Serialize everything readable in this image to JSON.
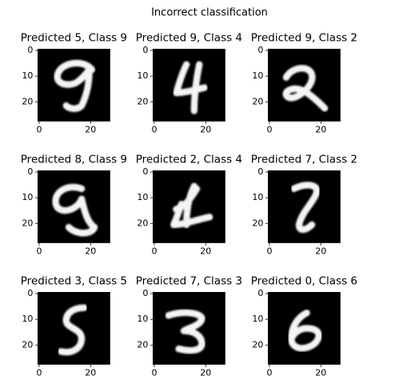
{
  "title": "Incorrect classification",
  "chart_data": [
    {
      "type": "image",
      "title": "Predicted 5, Class 9",
      "xlim": [
        -0.5,
        27.5
      ],
      "ylim": [
        27.5,
        -0.5
      ],
      "xticks": [
        0,
        20
      ],
      "yticks": [
        0,
        10,
        20
      ]
    },
    {
      "type": "image",
      "title": "Predicted 9, Class 4",
      "xlim": [
        -0.5,
        27.5
      ],
      "ylim": [
        27.5,
        -0.5
      ],
      "xticks": [
        0,
        20
      ],
      "yticks": [
        0,
        10,
        20
      ]
    },
    {
      "type": "image",
      "title": "Predicted 9, Class 2",
      "xlim": [
        -0.5,
        27.5
      ],
      "ylim": [
        27.5,
        -0.5
      ],
      "xticks": [
        0,
        20
      ],
      "yticks": [
        0,
        10,
        20
      ]
    },
    {
      "type": "image",
      "title": "Predicted 8, Class 9",
      "xlim": [
        -0.5,
        27.5
      ],
      "ylim": [
        27.5,
        -0.5
      ],
      "xticks": [
        0,
        20
      ],
      "yticks": [
        0,
        10,
        20
      ]
    },
    {
      "type": "image",
      "title": "Predicted 2, Class 4",
      "xlim": [
        -0.5,
        27.5
      ],
      "ylim": [
        27.5,
        -0.5
      ],
      "xticks": [
        0,
        20
      ],
      "yticks": [
        0,
        10,
        20
      ]
    },
    {
      "type": "image",
      "title": "Predicted 7, Class 2",
      "xlim": [
        -0.5,
        27.5
      ],
      "ylim": [
        27.5,
        -0.5
      ],
      "xticks": [
        0,
        20
      ],
      "yticks": [
        0,
        10,
        20
      ]
    },
    {
      "type": "image",
      "title": "Predicted 3, Class 5",
      "xlim": [
        -0.5,
        27.5
      ],
      "ylim": [
        27.5,
        -0.5
      ],
      "xticks": [
        0,
        20
      ],
      "yticks": [
        0,
        10,
        20
      ]
    },
    {
      "type": "image",
      "title": "Predicted 7, Class 3",
      "xlim": [
        -0.5,
        27.5
      ],
      "ylim": [
        27.5,
        -0.5
      ],
      "xticks": [
        0,
        20
      ],
      "yticks": [
        0,
        10,
        20
      ]
    },
    {
      "type": "image",
      "title": "Predicted 0, Class 6",
      "xlim": [
        -0.5,
        27.5
      ],
      "ylim": [
        27.5,
        -0.5
      ],
      "xticks": [
        0,
        20
      ],
      "yticks": [
        0,
        10,
        20
      ]
    }
  ]
}
